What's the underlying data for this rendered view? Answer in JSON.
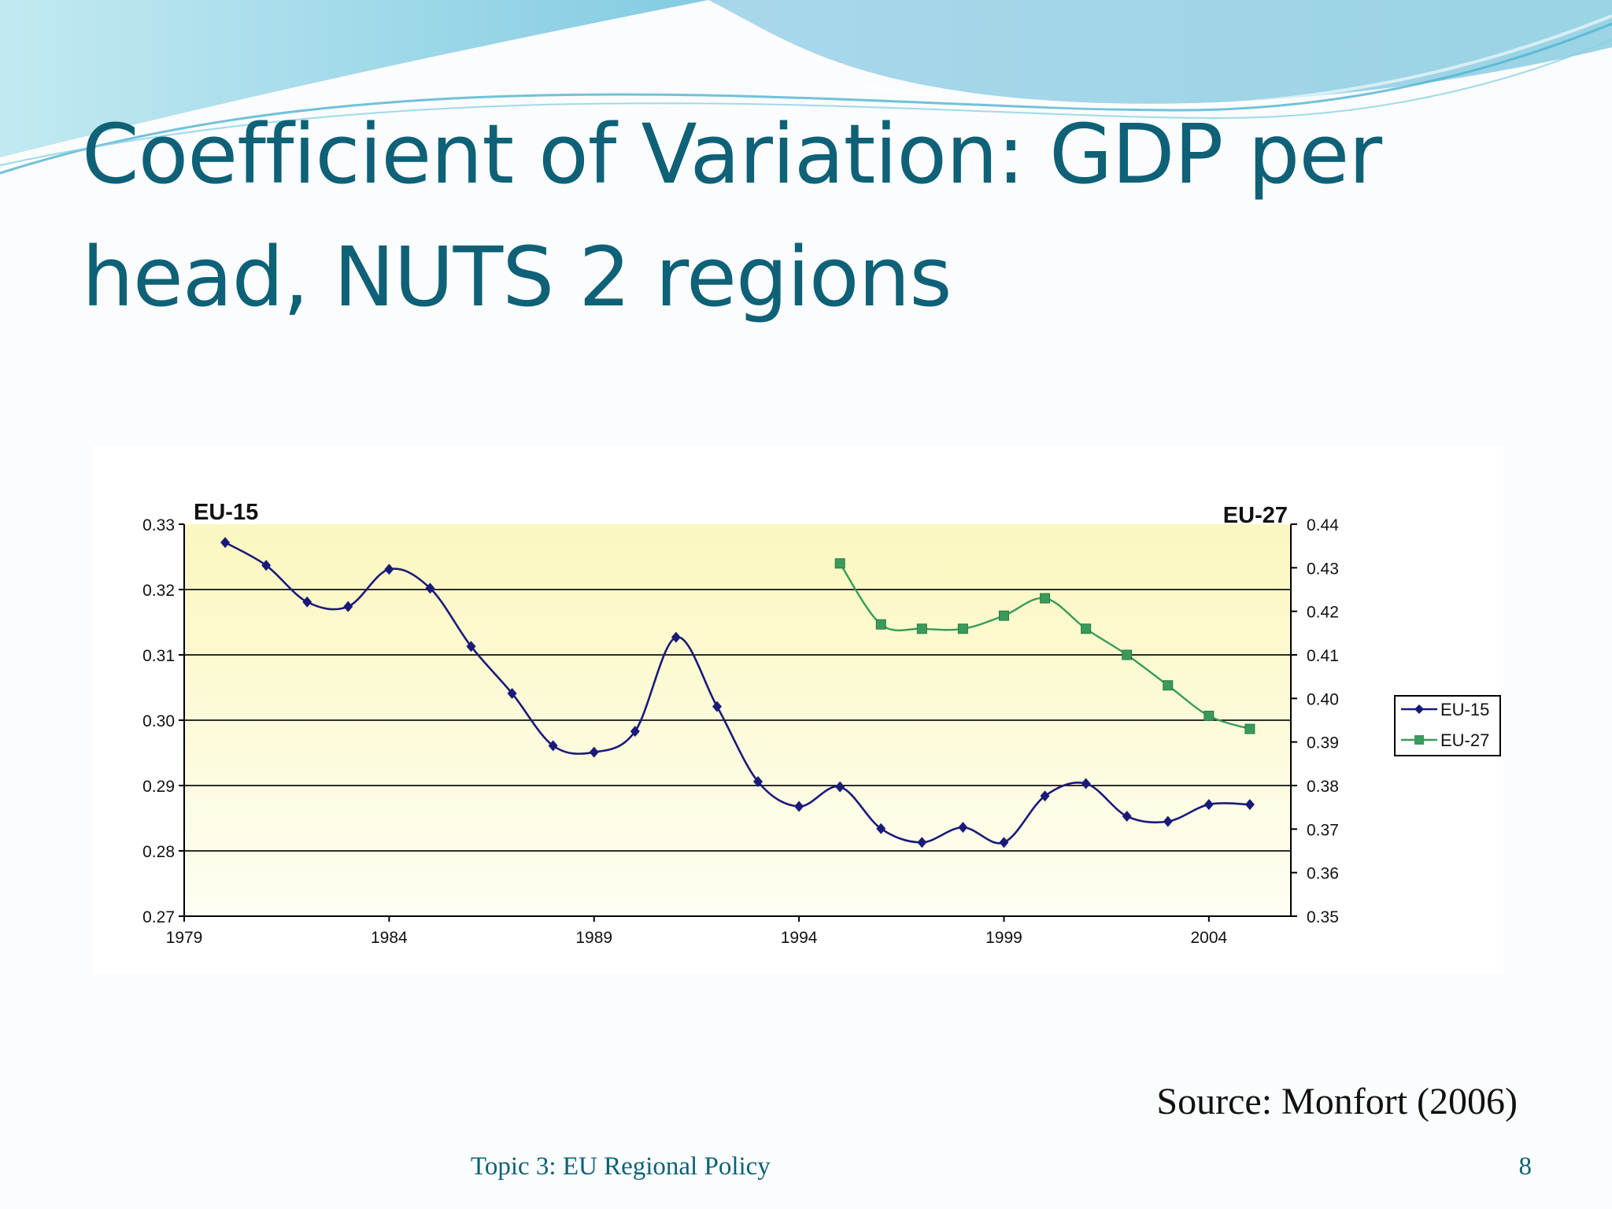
{
  "slide": {
    "title_line1": "Coefficient of Variation: GDP per",
    "title_line2": "head, NUTS 2 regions",
    "source": "Source: Monfort (2006)",
    "footer": "Topic 3: EU Regional Policy",
    "page_number": "8"
  },
  "colors": {
    "title": "#0e6177",
    "eu15": "#1a1a7a",
    "eu27": "#3a9a5a",
    "plot_fill_top": "#fbf7c0",
    "plot_fill_bottom": "#fdfdf0"
  },
  "chart_data": {
    "type": "line",
    "left_axis_title": "EU-15",
    "right_axis_title": "EU-27",
    "x_ticks": [
      1979,
      1984,
      1989,
      1994,
      1999,
      2004
    ],
    "xlim": [
      1979,
      2006
    ],
    "y_left": {
      "min": 0.27,
      "max": 0.33,
      "ticks": [
        "0.27",
        "0.28",
        "0.29",
        "0.30",
        "0.31",
        "0.32",
        "0.33"
      ]
    },
    "y_right": {
      "min": 0.35,
      "max": 0.44,
      "ticks": [
        "0.35",
        "0.36",
        "0.37",
        "0.38",
        "0.39",
        "0.40",
        "0.41",
        "0.42",
        "0.43",
        "0.44"
      ]
    },
    "grid": "horizontal major lines on left axis",
    "legend_position": "right",
    "series": [
      {
        "name": "EU-15",
        "axis": "left",
        "marker": "diamond",
        "x": [
          1980,
          1981,
          1982,
          1983,
          1984,
          1985,
          1986,
          1987,
          1988,
          1989,
          1990,
          1991,
          1992,
          1993,
          1994,
          1995,
          1996,
          1997,
          1998,
          1999,
          2000,
          2001,
          2002,
          2003,
          2004,
          2005
        ],
        "y": [
          0.3272,
          0.3237,
          0.3181,
          0.3174,
          0.3231,
          0.3202,
          0.3113,
          0.3041,
          0.2961,
          0.2951,
          0.2983,
          0.3127,
          0.3021,
          0.2906,
          0.2868,
          0.2898,
          0.2834,
          0.2813,
          0.2836,
          0.2813,
          0.2884,
          0.2903,
          0.2853,
          0.2845,
          0.2871,
          0.2871
        ]
      },
      {
        "name": "EU-27",
        "axis": "right",
        "marker": "square",
        "x": [
          1995,
          1996,
          1997,
          1998,
          1999,
          2000,
          2001,
          2002,
          2003,
          2004,
          2005
        ],
        "y": [
          0.431,
          0.417,
          0.416,
          0.416,
          0.419,
          0.423,
          0.416,
          0.41,
          0.403,
          0.396,
          0.393
        ]
      }
    ]
  }
}
